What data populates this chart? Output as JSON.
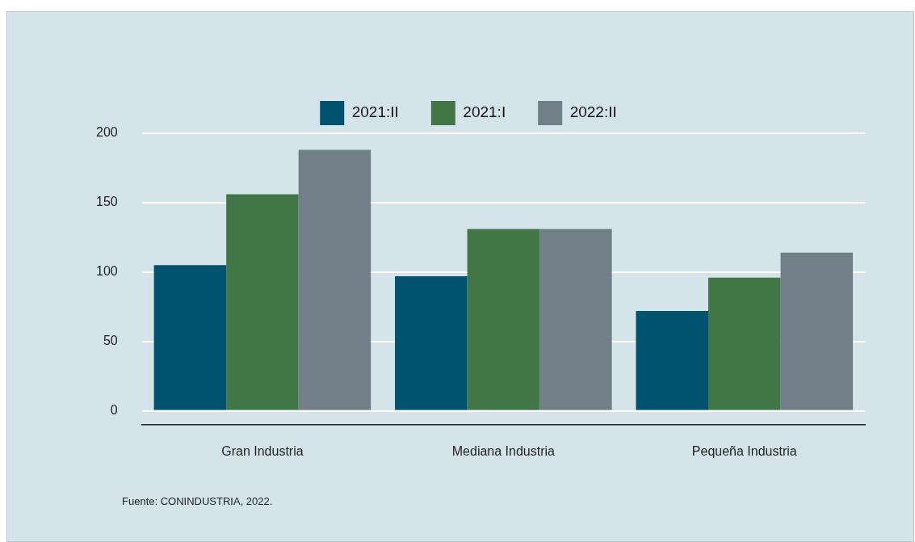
{
  "chart_data": {
    "type": "bar",
    "categories": [
      "Gran Industria",
      "Mediana Industria",
      "Pequeña Industria"
    ],
    "series": [
      {
        "name": "2021:II",
        "color": "#00536f",
        "values": [
          105,
          97,
          72
        ]
      },
      {
        "name": "2021:I",
        "color": "#437647",
        "values": [
          156,
          131,
          96
        ]
      },
      {
        "name": "2022:II",
        "color": "#737f88",
        "values": [
          188,
          131,
          114
        ]
      }
    ],
    "ylim": [
      -10,
      200
    ],
    "yticks": [
      0,
      50,
      100,
      150,
      200
    ],
    "grid": "y",
    "legend": "top",
    "annotations": [
      "Fuente: CONINDUSTRIA, 2022."
    ]
  }
}
